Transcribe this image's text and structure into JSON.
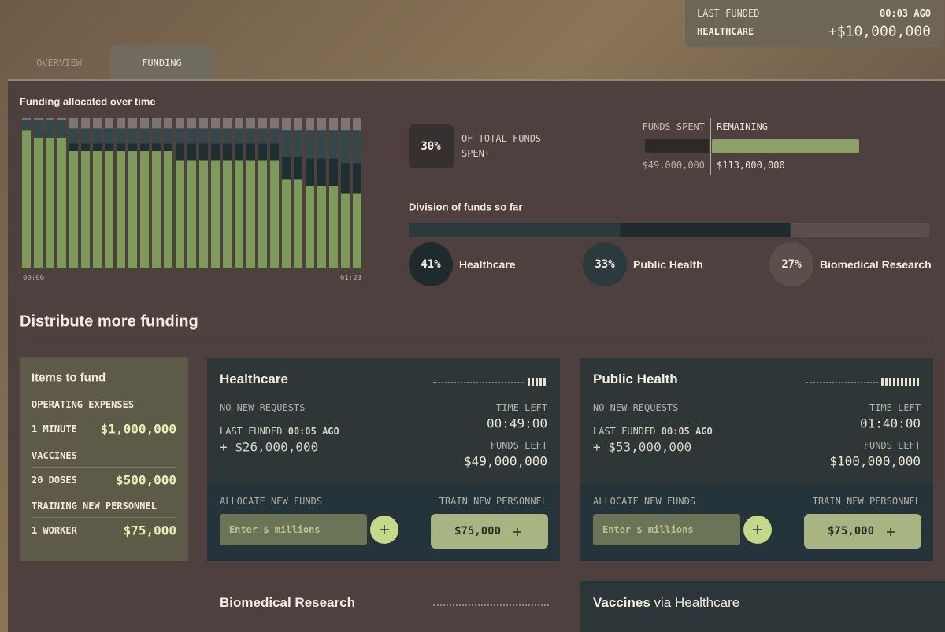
{
  "banner": {
    "label": "LAST FUNDED",
    "time": "00:03 AGO",
    "program": "HEALTHCARE",
    "amount": "+$10,000,000"
  },
  "tabs": {
    "items": [
      "OVERVIEW",
      "FUNDING"
    ],
    "active": 1
  },
  "chart_data": {
    "type": "bar",
    "stacked": true,
    "title": "Funding allocated over time",
    "categories": [
      "00:00",
      null,
      null,
      null,
      null,
      null,
      null,
      null,
      null,
      null,
      null,
      null,
      null,
      null,
      null,
      null,
      null,
      null,
      null,
      null,
      null,
      null,
      null,
      null,
      null,
      null,
      null,
      null,
      "01:23"
    ],
    "ylim": [
      0,
      100
    ],
    "series": [
      {
        "color": "#7d9a5a",
        "values": [
          92,
          87,
          87,
          87,
          78,
          78,
          78,
          78,
          78,
          78,
          78,
          78,
          78,
          72,
          72,
          72,
          72,
          72,
          72,
          72,
          72,
          72,
          59,
          59,
          55,
          55,
          55,
          50,
          50
        ]
      },
      {
        "color": "#1f2e30",
        "values": [
          0,
          0,
          0,
          0,
          5,
          5,
          5,
          5,
          5,
          5,
          5,
          5,
          5,
          11,
          11,
          11,
          11,
          11,
          11,
          11,
          11,
          11,
          15,
          15,
          18,
          18,
          18,
          20,
          20
        ]
      },
      {
        "color": "#34474a",
        "values": [
          7,
          12,
          12,
          12,
          10,
          10,
          10,
          10,
          10,
          10,
          10,
          10,
          10,
          10,
          10,
          10,
          10,
          10,
          10,
          10,
          10,
          10,
          18,
          18,
          19,
          19,
          19,
          22,
          22
        ]
      },
      {
        "color": "#7d7573",
        "values": [
          1,
          1,
          1,
          1,
          7,
          7,
          7,
          7,
          7,
          7,
          7,
          7,
          7,
          7,
          7,
          7,
          7,
          7,
          7,
          7,
          7,
          7,
          8,
          8,
          8,
          8,
          8,
          8,
          8
        ]
      }
    ]
  },
  "spending": {
    "percent": {
      "value": 30,
      "label": "30%"
    },
    "caption": "OF TOTAL FUNDS SPENT",
    "spent_label": "FUNDS SPENT",
    "remaining_label": "REMAINING",
    "spent": {
      "value": 49000000,
      "label": "$49,000,000",
      "color": "#2e2827"
    },
    "remaining": {
      "value": 113000000,
      "label": "$113,000,000",
      "color": "#8da06a"
    }
  },
  "division": {
    "title": "Division of funds so far",
    "items": [
      {
        "name": "Healthcare",
        "value": 41,
        "label": "41%",
        "color": "#2b3a3c",
        "badge": "#1e2b2e"
      },
      {
        "name": "Public Health",
        "value": 33,
        "label": "33%",
        "color": "#1f2a2c",
        "badge": "#2b3a3d"
      },
      {
        "name": "Biomedical Research",
        "value": 27,
        "label": "27%",
        "color": "#5a4d4b",
        "badge": "#5b4f4c"
      }
    ]
  },
  "distribute": {
    "title": "Distribute more funding"
  },
  "items_to_fund": {
    "title": "Items to fund",
    "groups": [
      {
        "name": "OPERATING EXPENSES",
        "unit": "1 MINUTE",
        "price": "$1,000,000"
      },
      {
        "name": "VACCINES",
        "unit": "20 DOSES",
        "price": "$500,000"
      },
      {
        "name": "TRAINING NEW PERSONNEL",
        "unit": "1 WORKER",
        "price": "$75,000"
      }
    ]
  },
  "programs": [
    {
      "name": "Healthcare",
      "level": 5,
      "status": "NO NEW REQUESTS",
      "last_funded_label": "LAST FUNDED",
      "last_funded_time": "00:05 AGO",
      "last_funded_amount": "+ $26,000,000",
      "time_left_label": "TIME LEFT",
      "time_left": "00:49:00",
      "funds_left_label": "FUNDS LEFT",
      "funds_left": "$49,000,000",
      "allocate_label": "ALLOCATE NEW FUNDS",
      "input_placeholder": "Enter $ millions",
      "train_label": "TRAIN NEW PERSONNEL",
      "train_button": "$75,000"
    },
    {
      "name": "Public Health",
      "level": 10,
      "status": "NO NEW REQUESTS",
      "last_funded_label": "LAST FUNDED",
      "last_funded_time": "00:05 AGO",
      "last_funded_amount": "+ $53,000,000",
      "time_left_label": "TIME LEFT",
      "time_left": "01:40:00",
      "funds_left_label": "FUNDS LEFT",
      "funds_left": "$100,000,000",
      "allocate_label": "ALLOCATE NEW FUNDS",
      "input_placeholder": "Enter $ millions",
      "train_label": "TRAIN NEW PERSONNEL",
      "train_button": "$75,000"
    }
  ],
  "more_programs": [
    {
      "name": "Biomedical Research"
    },
    {
      "name": "Vaccines",
      "via": "via Healthcare"
    }
  ]
}
